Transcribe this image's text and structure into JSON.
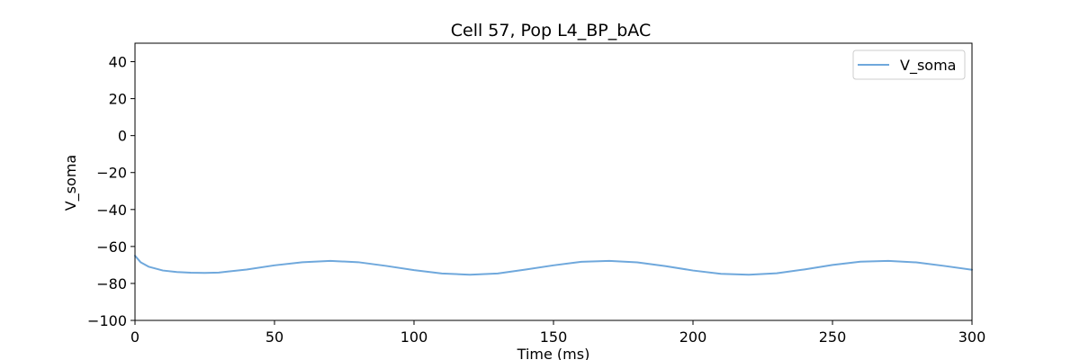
{
  "chart_data": {
    "type": "line",
    "title": "Cell 57, Pop L4_BP_bAC",
    "xlabel": "Time (ms)",
    "ylabel": "V_soma",
    "xlim": [
      0,
      300
    ],
    "ylim": [
      -100,
      50
    ],
    "x_ticks": [
      0,
      50,
      100,
      150,
      200,
      250,
      300
    ],
    "y_ticks": [
      40,
      20,
      0,
      -20,
      -40,
      -60,
      -80,
      -100
    ],
    "grid": false,
    "legend": {
      "position": "top-right"
    },
    "series": [
      {
        "name": "V_soma",
        "color": "#6fa8dc",
        "x": [
          0,
          2,
          5,
          10,
          15,
          20,
          25,
          30,
          40,
          50,
          60,
          70,
          80,
          90,
          100,
          110,
          120,
          130,
          140,
          150,
          160,
          170,
          180,
          190,
          200,
          210,
          220,
          230,
          240,
          250,
          260,
          270,
          280,
          290,
          300
        ],
        "y": [
          -65,
          -68.5,
          -71,
          -73,
          -73.8,
          -74.2,
          -74.3,
          -74.1,
          -72.5,
          -70.2,
          -68.5,
          -67.8,
          -68.5,
          -70.5,
          -72.8,
          -74.6,
          -75.3,
          -74.6,
          -72.5,
          -70.2,
          -68.3,
          -67.8,
          -68.6,
          -70.6,
          -73,
          -74.8,
          -75.3,
          -74.5,
          -72.4,
          -70,
          -68.2,
          -67.8,
          -68.6,
          -70.5,
          -72.6
        ]
      }
    ]
  }
}
